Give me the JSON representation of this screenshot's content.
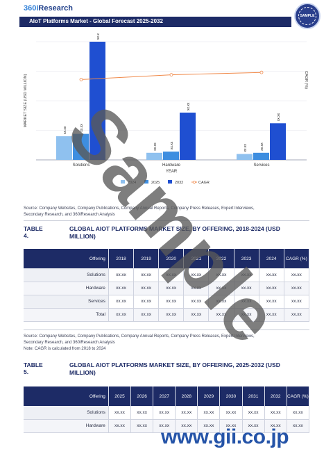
{
  "header": {
    "logo_prefix": "360i",
    "logo_suffix": "Research",
    "report_title": "AIoT Platforms Market - Global Forecast 2025-2032",
    "seal_text": "SAMPLE"
  },
  "chart_data": {
    "type": "bar",
    "categories": [
      "Solutions",
      "Hardware",
      "Services"
    ],
    "series": [
      {
        "name": "2024",
        "values": [
          20,
          6,
          5
        ],
        "color": "#8fc1ef"
      },
      {
        "name": "2025",
        "values": [
          22,
          7,
          6
        ],
        "color": "#3e8ee0"
      },
      {
        "name": "2032",
        "values": [
          100,
          40,
          31
        ],
        "color": "#1f4fd1"
      },
      {
        "name": "CAGR",
        "type": "line",
        "values": [
          68,
          72,
          74
        ],
        "color": "#f08a4b"
      }
    ],
    "bar_labels": [
      "xx.xx",
      "xx.xx",
      "xx.xx",
      "xx.xx",
      "xx.xx",
      "xx.xx",
      "xx.xx",
      "xx.xx",
      "xx.xx"
    ],
    "xlabel": "YEAR",
    "ylabel": "MARKET SIZE (USD MILLION)",
    "y2label": "CAGR (%)",
    "legend": [
      "2024",
      "2025",
      "2032",
      "CAGR"
    ],
    "legend_position": "bottom",
    "grid": true
  },
  "source1": {
    "line1": "Source: Company Websites, Company Publications, Company Annual Reports, Company Press Releases, Expert Interviews,",
    "line2": "Secondary Research, and 360iResearch Analysis"
  },
  "table4": {
    "label": "TABLE 4.",
    "title": "GLOBAL AIOT PLATFORMS MARKET SIZE, BY OFFERING, 2018-2024 (USD MILLION)",
    "header_first": "Offering",
    "headers": [
      "2018",
      "2019",
      "2020",
      "2021",
      "2022",
      "2023",
      "2024",
      "CAGR (%)"
    ],
    "rows": [
      {
        "name": "Solutions",
        "cells": [
          "xx.xx",
          "xx.xx",
          "xx.xx",
          "xx.xx",
          "xx.xx",
          "xx.xx",
          "xx.xx",
          "xx.xx"
        ]
      },
      {
        "name": "Hardware",
        "cells": [
          "xx.xx",
          "xx.xx",
          "xx.xx",
          "xx.xx",
          "xx.xx",
          "xx.xx",
          "xx.xx",
          "xx.xx"
        ]
      },
      {
        "name": "Services",
        "cells": [
          "xx.xx",
          "xx.xx",
          "xx.xx",
          "xx.xx",
          "xx.xx",
          "xx.xx",
          "xx.xx",
          "xx.xx"
        ]
      },
      {
        "name": "Total",
        "cells": [
          "xx.xx",
          "xx.xx",
          "xx.xx",
          "xx.xx",
          "xx.xx",
          "xx.xx",
          "xx.xx",
          "xx.xx"
        ]
      }
    ]
  },
  "source2": {
    "line1": "Source: Company Websites, Company Publications, Company Annual Reports, Company Press Releases, Expert Interviews,",
    "line2": "Secondary Research, and 360iResearch Analysis",
    "note": "Note: CAGR is calculated from 2018 to 2024"
  },
  "table5": {
    "label": "TABLE 5.",
    "title": "GLOBAL AIOT PLATFORMS MARKET SIZE, BY OFFERING, 2025-2032 (USD MILLION)",
    "header_first": "Offering",
    "headers": [
      "2025",
      "2026",
      "2027",
      "2028",
      "2029",
      "2030",
      "2031",
      "2032",
      "CAGR (%)"
    ],
    "rows": [
      {
        "name": "Solutions",
        "cells": [
          "xx.xx",
          "xx.xx",
          "xx.xx",
          "xx.xx",
          "xx.xx",
          "xx.xx",
          "xx.xx",
          "xx.xx",
          "xx.xx"
        ]
      },
      {
        "name": "Hardware",
        "cells": [
          "xx.xx",
          "xx.xx",
          "xx.xx",
          "xx.xx",
          "xx.xx",
          "xx.xx",
          "xx.xx",
          "xx.xx",
          "xx.xx"
        ]
      }
    ]
  },
  "watermark": {
    "sample": "Sample",
    "url": "www.gii.co.jp"
  }
}
